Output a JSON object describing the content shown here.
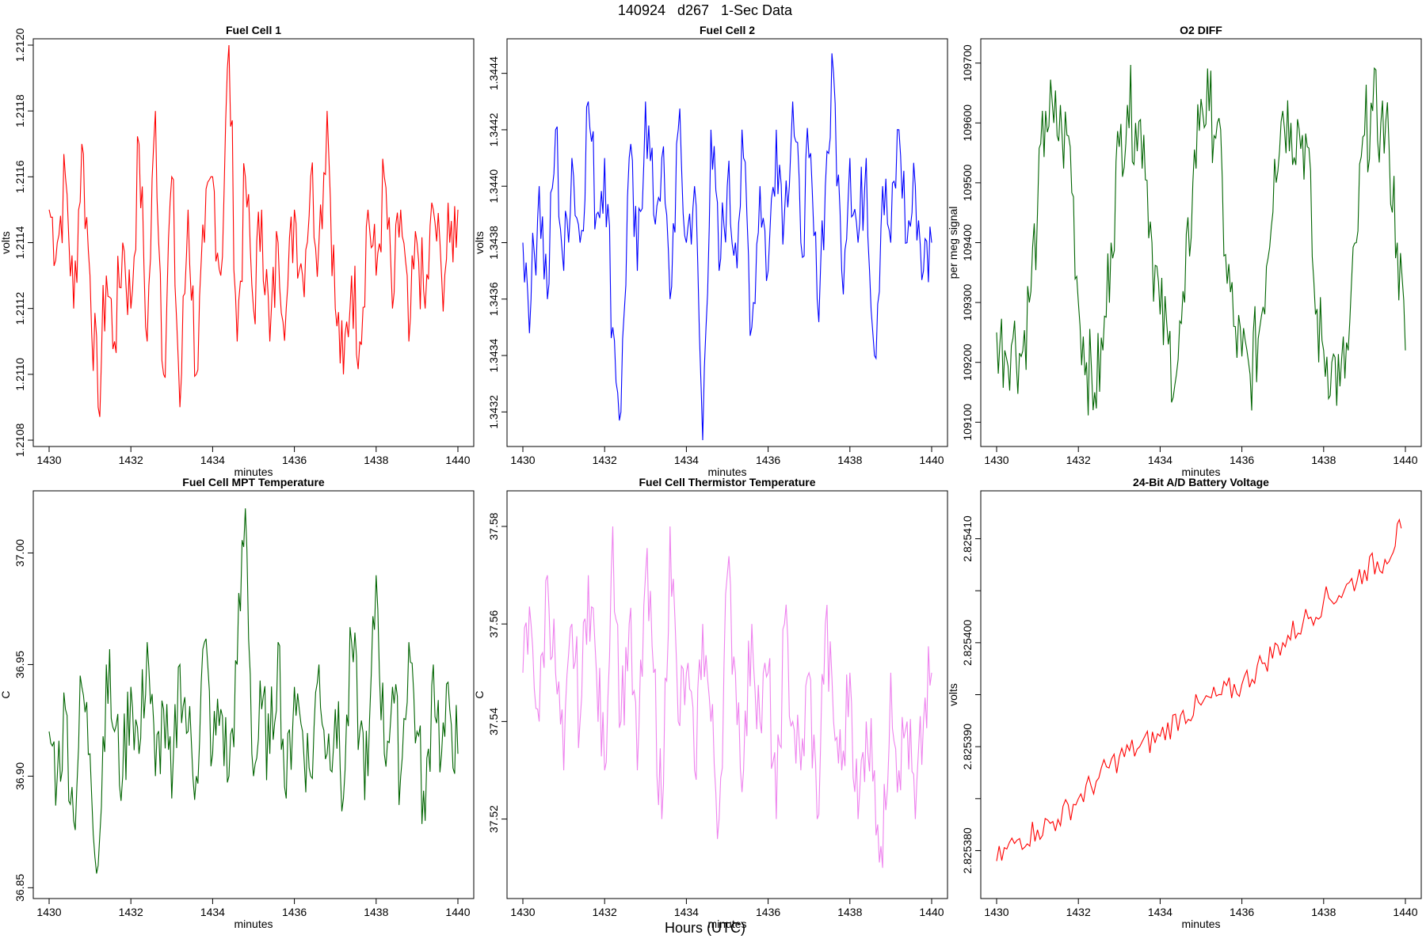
{
  "figure": {
    "title": "140924   d267   1-Sec Data",
    "footer_label": "Hours (UTC)"
  },
  "chart_data": [
    {
      "type": "line",
      "title": "Fuel Cell 1",
      "xlabel": "minutes",
      "ylabel": "volts",
      "color": "#ff0000",
      "xlim": [
        1430,
        1440
      ],
      "ylim": [
        1.2108,
        1.212
      ],
      "xticks": [
        1430,
        1432,
        1434,
        1436,
        1438,
        1440
      ],
      "yticks": [
        1.2108,
        1.211,
        1.2112,
        1.2114,
        1.2116,
        1.2118,
        1.212
      ],
      "ytick_labels": [
        "1.2108",
        "1.2110",
        "1.2112",
        "1.2114",
        "1.2116",
        "1.2118",
        "1.2120"
      ],
      "series": [
        {
          "x": [
            1430.0,
            1430.2,
            1430.4,
            1430.6,
            1430.8,
            1431.0,
            1431.2,
            1431.4,
            1431.6,
            1431.8,
            1432.0,
            1432.2,
            1432.4,
            1432.6,
            1432.8,
            1433.0,
            1433.2,
            1433.4,
            1433.6,
            1433.8,
            1434.0,
            1434.2,
            1434.4,
            1434.6,
            1434.8,
            1435.0,
            1435.2,
            1435.4,
            1435.6,
            1435.8,
            1436.0,
            1436.2,
            1436.4,
            1436.6,
            1436.8,
            1437.0,
            1437.2,
            1437.4,
            1437.6,
            1437.8,
            1438.0,
            1438.2,
            1438.4,
            1438.6,
            1438.8,
            1439.0,
            1439.2,
            1439.4,
            1439.6,
            1439.8,
            1440.0
          ],
          "values": [
            1.2115,
            1.2114,
            1.2116,
            1.2112,
            1.2117,
            1.2113,
            1.2109,
            1.2113,
            1.2111,
            1.2114,
            1.2112,
            1.2117,
            1.2111,
            1.2118,
            1.211,
            1.2116,
            1.2109,
            1.2115,
            1.211,
            1.2114,
            1.2116,
            1.2113,
            1.212,
            1.2111,
            1.2116,
            1.2112,
            1.2115,
            1.2111,
            1.2114,
            1.2112,
            1.2115,
            1.2113,
            1.2116,
            1.2114,
            1.2118,
            1.2112,
            1.211,
            1.2113,
            1.2111,
            1.2115,
            1.2113,
            1.2116,
            1.2112,
            1.2115,
            1.2111,
            1.2114,
            1.2112,
            1.2115,
            1.2113,
            1.2114,
            1.2115
          ]
        }
      ]
    },
    {
      "type": "line",
      "title": "Fuel Cell 2",
      "xlabel": "minutes",
      "ylabel": "volts",
      "color": "#0000ff",
      "xlim": [
        1430,
        1440
      ],
      "ylim": [
        1.3431,
        1.3445
      ],
      "xticks": [
        1430,
        1432,
        1434,
        1436,
        1438,
        1440
      ],
      "yticks": [
        1.3432,
        1.3434,
        1.3436,
        1.3438,
        1.344,
        1.3442,
        1.3444
      ],
      "ytick_labels": [
        "1.3432",
        "1.3434",
        "1.3436",
        "1.3438",
        "1.3440",
        "1.3442",
        "1.3444"
      ],
      "series": [
        {
          "x": [
            1430.0,
            1430.2,
            1430.4,
            1430.6,
            1430.8,
            1431.0,
            1431.2,
            1431.4,
            1431.6,
            1431.8,
            1432.0,
            1432.2,
            1432.4,
            1432.6,
            1432.8,
            1433.0,
            1433.2,
            1433.4,
            1433.6,
            1433.8,
            1434.0,
            1434.2,
            1434.4,
            1434.6,
            1434.8,
            1435.0,
            1435.2,
            1435.4,
            1435.6,
            1435.8,
            1436.0,
            1436.2,
            1436.4,
            1436.6,
            1436.8,
            1437.0,
            1437.2,
            1437.4,
            1437.6,
            1437.8,
            1438.0,
            1438.2,
            1438.4,
            1438.6,
            1438.8,
            1439.0,
            1439.2,
            1439.4,
            1439.6,
            1439.8,
            1440.0
          ],
          "values": [
            1.3438,
            1.3436,
            1.344,
            1.3436,
            1.3442,
            1.3437,
            1.3441,
            1.3438,
            1.3443,
            1.3439,
            1.3441,
            1.3435,
            1.3432,
            1.3441,
            1.3437,
            1.3443,
            1.3439,
            1.3441,
            1.3436,
            1.3442,
            1.3438,
            1.344,
            1.3431,
            1.3442,
            1.3437,
            1.344,
            1.3438,
            1.3441,
            1.3435,
            1.344,
            1.3437,
            1.3442,
            1.3439,
            1.3443,
            1.3438,
            1.3441,
            1.3436,
            1.344,
            1.3444,
            1.3437,
            1.3441,
            1.3438,
            1.3441,
            1.3434,
            1.344,
            1.3438,
            1.3442,
            1.3438,
            1.344,
            1.3437,
            1.3438
          ]
        }
      ]
    },
    {
      "type": "line",
      "title": "O2 DIFF",
      "xlabel": "minutes",
      "ylabel": "per meg signal",
      "color": "#006400",
      "xlim": [
        1430,
        1440
      ],
      "ylim": [
        109070,
        109730
      ],
      "xticks": [
        1430,
        1432,
        1434,
        1436,
        1438,
        1440
      ],
      "yticks": [
        109100,
        109200,
        109300,
        109400,
        109500,
        109600,
        109700
      ],
      "ytick_labels": [
        "109100",
        "109200",
        "109300",
        "109400",
        "109500",
        "109600",
        "109700"
      ],
      "series": [
        {
          "x": [
            1430.0,
            1430.2,
            1430.4,
            1430.6,
            1430.8,
            1431.0,
            1431.2,
            1431.4,
            1431.6,
            1431.8,
            1432.0,
            1432.2,
            1432.4,
            1432.6,
            1432.8,
            1433.0,
            1433.2,
            1433.4,
            1433.6,
            1433.8,
            1434.0,
            1434.2,
            1434.4,
            1434.6,
            1434.8,
            1435.0,
            1435.2,
            1435.4,
            1435.6,
            1435.8,
            1436.0,
            1436.2,
            1436.4,
            1436.6,
            1436.8,
            1437.0,
            1437.2,
            1437.4,
            1437.6,
            1437.8,
            1438.0,
            1438.2,
            1438.4,
            1438.6,
            1438.8,
            1439.0,
            1439.2,
            1439.4,
            1439.6,
            1439.8,
            1440.0
          ],
          "values": [
            109250,
            109220,
            109240,
            109210,
            109300,
            109450,
            109620,
            109600,
            109580,
            109560,
            109300,
            109200,
            109150,
            109220,
            109400,
            109560,
            109630,
            109600,
            109580,
            109400,
            109280,
            109230,
            109180,
            109300,
            109500,
            109640,
            109620,
            109600,
            109380,
            109260,
            109210,
            109180,
            109240,
            109360,
            109540,
            109620,
            109600,
            109590,
            109560,
            109280,
            109220,
            109200,
            109160,
            109220,
            109400,
            109580,
            109620,
            109600,
            109560,
            109400,
            109220
          ]
        }
      ]
    },
    {
      "type": "line",
      "title": "Fuel Cell MPT Temperature",
      "xlabel": "minutes",
      "ylabel": "C",
      "color": "#006400",
      "xlim": [
        1430,
        1440
      ],
      "ylim": [
        36.848,
        37.025
      ],
      "xticks": [
        1430,
        1432,
        1434,
        1436,
        1438,
        1440
      ],
      "yticks": [
        36.85,
        36.9,
        36.95,
        37.0
      ],
      "ytick_labels": [
        "36.85",
        "36.90",
        "36.95",
        "37.00"
      ],
      "series": [
        {
          "x": [
            1430.0,
            1430.2,
            1430.4,
            1430.6,
            1430.8,
            1431.0,
            1431.2,
            1431.4,
            1431.6,
            1431.8,
            1432.0,
            1432.2,
            1432.4,
            1432.6,
            1432.8,
            1433.0,
            1433.2,
            1433.4,
            1433.6,
            1433.8,
            1434.0,
            1434.2,
            1434.4,
            1434.6,
            1434.8,
            1435.0,
            1435.2,
            1435.4,
            1435.6,
            1435.8,
            1436.0,
            1436.2,
            1436.4,
            1436.6,
            1436.8,
            1437.0,
            1437.2,
            1437.4,
            1437.6,
            1437.8,
            1438.0,
            1438.2,
            1438.4,
            1438.6,
            1438.8,
            1439.0,
            1439.2,
            1439.4,
            1439.6,
            1439.8,
            1440.0
          ],
          "values": [
            36.92,
            36.9,
            36.93,
            36.88,
            36.94,
            36.91,
            36.86,
            36.95,
            36.92,
            36.9,
            36.94,
            36.91,
            36.96,
            36.9,
            36.93,
            36.89,
            36.95,
            36.92,
            36.9,
            36.96,
            36.91,
            36.93,
            36.9,
            36.95,
            37.02,
            36.9,
            36.93,
            36.91,
            36.96,
            36.89,
            36.94,
            36.92,
            36.9,
            36.95,
            36.91,
            36.93,
            36.89,
            36.96,
            36.92,
            36.9,
            36.99,
            36.91,
            36.94,
            36.9,
            36.96,
            36.92,
            36.88,
            36.95,
            36.91,
            36.93,
            36.91
          ]
        }
      ]
    },
    {
      "type": "line",
      "title": "Fuel Cell Thermistor Temperature",
      "xlabel": "minutes",
      "ylabel": "C",
      "color": "#ee82ee",
      "xlim": [
        1430,
        1440
      ],
      "ylim": [
        37.505,
        37.586
      ],
      "xticks": [
        1430,
        1432,
        1434,
        1436,
        1438,
        1440
      ],
      "yticks": [
        37.52,
        37.54,
        37.56,
        37.58
      ],
      "ytick_labels": [
        "37.52",
        "37.54",
        "37.56",
        "37.58"
      ],
      "series": [
        {
          "x": [
            1430.0,
            1430.2,
            1430.4,
            1430.6,
            1430.8,
            1431.0,
            1431.2,
            1431.4,
            1431.6,
            1431.8,
            1432.0,
            1432.2,
            1432.4,
            1432.6,
            1432.8,
            1433.0,
            1433.2,
            1433.4,
            1433.6,
            1433.8,
            1434.0,
            1434.2,
            1434.4,
            1434.6,
            1434.8,
            1435.0,
            1435.2,
            1435.4,
            1435.6,
            1435.8,
            1436.0,
            1436.2,
            1436.4,
            1436.6,
            1436.8,
            1437.0,
            1437.2,
            1437.4,
            1437.6,
            1437.8,
            1438.0,
            1438.2,
            1438.4,
            1438.6,
            1438.8,
            1439.0,
            1439.2,
            1439.4,
            1439.6,
            1439.8,
            1440.0
          ],
          "values": [
            37.55,
            37.56,
            37.54,
            37.57,
            37.55,
            37.53,
            37.56,
            37.54,
            37.57,
            37.55,
            37.53,
            37.58,
            37.54,
            37.56,
            37.53,
            37.57,
            37.55,
            37.52,
            37.58,
            37.54,
            37.55,
            37.53,
            37.56,
            37.54,
            37.52,
            37.57,
            37.55,
            37.53,
            37.56,
            37.54,
            37.55,
            37.52,
            37.56,
            37.54,
            37.53,
            37.55,
            37.52,
            37.56,
            37.54,
            37.53,
            37.55,
            37.52,
            37.54,
            37.53,
            37.51,
            37.55,
            37.53,
            37.54,
            37.52,
            37.54,
            37.55
          ]
        }
      ]
    },
    {
      "type": "line",
      "title": "24-Bit A/D Battery Voltage",
      "xlabel": "minutes",
      "ylabel": "volts",
      "color": "#ff0000",
      "xlim": [
        1430,
        1440
      ],
      "ylim": [
        2.825376,
        2.825414
      ],
      "xticks": [
        1430,
        1432,
        1434,
        1436,
        1438,
        1440
      ],
      "yticks": [
        2.82538,
        2.825385,
        2.82539,
        2.825395,
        2.8254,
        2.825405,
        2.82541
      ],
      "ytick_labels": [
        "2.825380",
        "",
        "2.825390",
        "",
        "2.825400",
        "",
        "2.825410"
      ],
      "series": [
        {
          "x": [
            1430.0,
            1430.5,
            1431.0,
            1431.5,
            1432.0,
            1432.5,
            1433.0,
            1433.5,
            1434.0,
            1434.5,
            1435.0,
            1435.5,
            1436.0,
            1436.5,
            1437.0,
            1437.5,
            1438.0,
            1438.5,
            1439.0,
            1439.5,
            1439.9
          ],
          "values": [
            2.825379,
            2.825381,
            2.825382,
            2.825383,
            2.825385,
            2.825387,
            2.825389,
            2.82539,
            2.825391,
            2.825393,
            2.825394,
            2.825395,
            2.825396,
            2.825398,
            2.8254,
            2.825402,
            2.825404,
            2.825405,
            2.825407,
            2.825408,
            2.825411
          ]
        }
      ]
    }
  ]
}
